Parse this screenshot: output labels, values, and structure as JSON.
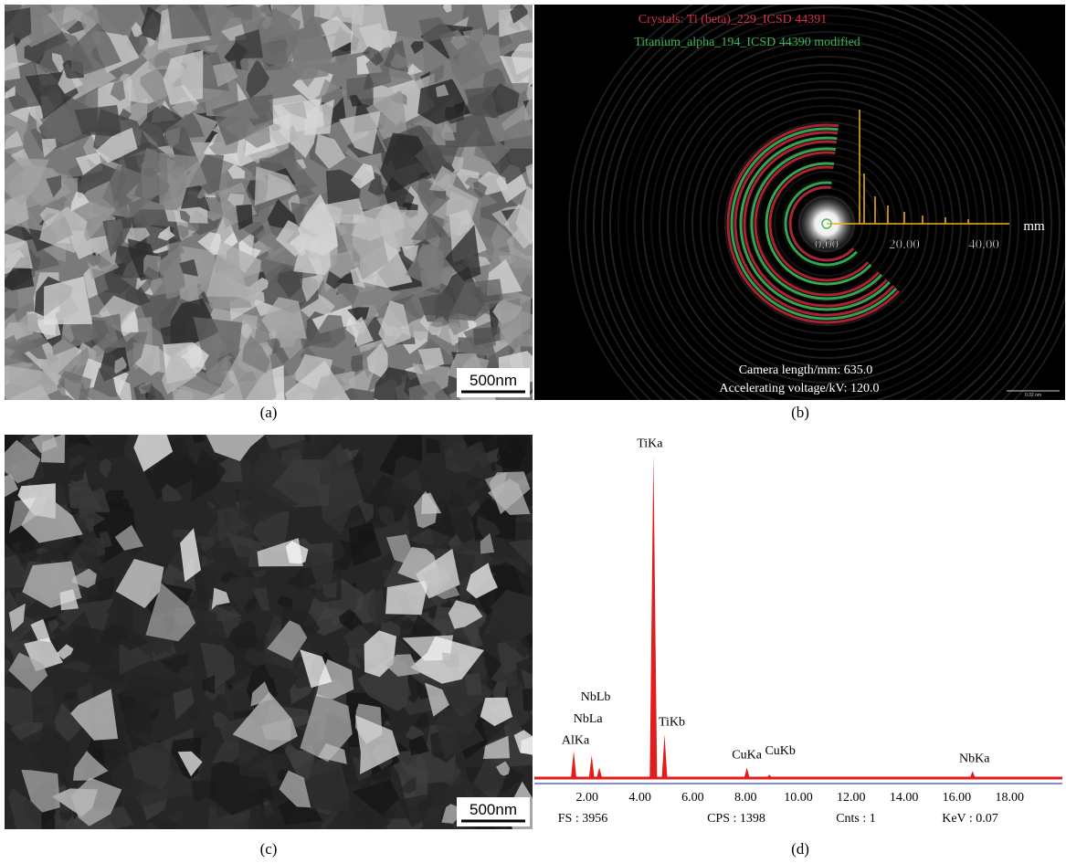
{
  "panels": {
    "a": {
      "caption": "(a)",
      "scale_bar": "500nm"
    },
    "b": {
      "caption": "(b)",
      "crystal_1": "Crystals: Ti (beta)_229_ICSD 44391",
      "crystal_2": "Titanium_alpha_194_ICSD 44390 modified",
      "axis_labels": [
        "0.00",
        "20.00",
        "40.00"
      ],
      "axis_unit": "mm",
      "camera_length": "Camera length/mm: 635.0",
      "voltage": "Accelerating voltage/kV: 120.0",
      "scale_bar": "0.02 nm"
    },
    "c": {
      "caption": "(c)",
      "scale_bar": "500nm"
    },
    "d": {
      "caption": "(d)",
      "chart_data": {
        "type": "spectrum",
        "peaks": [
          {
            "label": "AlKa",
            "energy": 1.49,
            "height": 310
          },
          {
            "label": "NbLa",
            "energy": 2.17,
            "height": 260
          },
          {
            "label": "NbLb",
            "energy": 2.46,
            "height": 120
          },
          {
            "label": "TiKa",
            "energy": 4.51,
            "height": 3700
          },
          {
            "label": "TiKb",
            "energy": 4.93,
            "height": 500
          },
          {
            "label": "CuKa",
            "energy": 8.05,
            "height": 120
          },
          {
            "label": "CuKb",
            "energy": 8.9,
            "height": 40
          },
          {
            "label": "NbKa",
            "energy": 16.6,
            "height": 80
          }
        ],
        "color": "#e01e1e",
        "xlim": [
          0,
          20
        ],
        "ylim": [
          0,
          4000
        ],
        "xticks": [
          {
            "value": 2,
            "label": "2.00"
          },
          {
            "value": 4,
            "label": "4.00"
          },
          {
            "value": 6,
            "label": "6.00"
          },
          {
            "value": 8,
            "label": "8.00"
          },
          {
            "value": 10,
            "label": "10.00"
          },
          {
            "value": 12,
            "label": "12.00"
          },
          {
            "value": 14,
            "label": "14.00"
          },
          {
            "value": 16,
            "label": "16.00"
          },
          {
            "value": 18,
            "label": "18.00"
          }
        ]
      },
      "footer": [
        "FS : 3956",
        "CPS : 1398",
        "Cnts : 1",
        "KeV : 0.07"
      ]
    }
  }
}
